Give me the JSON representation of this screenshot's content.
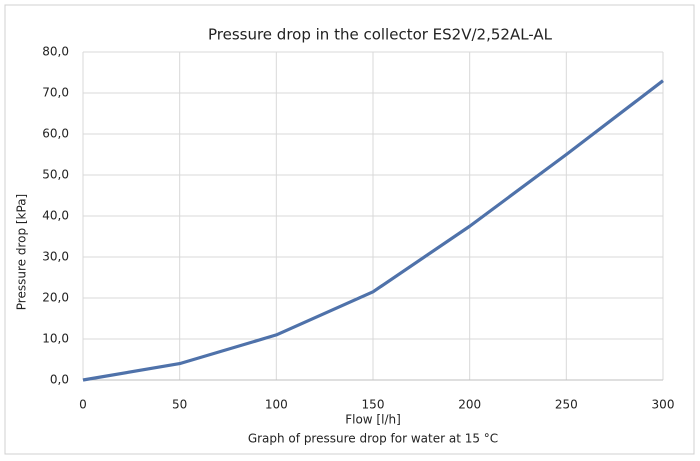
{
  "chart_data": {
    "type": "line",
    "title": "Pressure drop in the collector ES2V/2,52AL-AL",
    "xlabel": "Flow [l/h]",
    "ylabel": "Pressure drop [kPa]",
    "caption": "Graph of pressure drop for water at 15 °C",
    "x": [
      0,
      50,
      100,
      150,
      200,
      250,
      300
    ],
    "series": [
      {
        "name": "Pressure drop",
        "color": "#4f72aa",
        "values": [
          0,
          4,
          11,
          21.5,
          37.5,
          55,
          73
        ]
      }
    ],
    "xlim": [
      0,
      300
    ],
    "xticks": [
      0,
      50,
      100,
      150,
      200,
      250,
      300
    ],
    "ylim": [
      0,
      80
    ],
    "yticks": [
      {
        "value": 0,
        "label": "0,0"
      },
      {
        "value": 10,
        "label": "10,0"
      },
      {
        "value": 20,
        "label": "20,0"
      },
      {
        "value": 30,
        "label": "30,0"
      },
      {
        "value": 40,
        "label": "40,0"
      },
      {
        "value": 50,
        "label": "50,0"
      },
      {
        "value": 60,
        "label": "60,0"
      },
      {
        "value": 70,
        "label": "70,0"
      },
      {
        "value": 80,
        "label": "80,0"
      }
    ],
    "grid": true
  }
}
